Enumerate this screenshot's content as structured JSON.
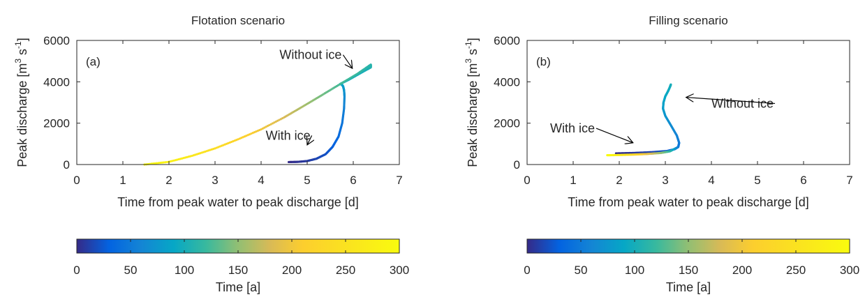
{
  "chart_data": [
    {
      "type": "scatter",
      "panel_label": "(a)",
      "title": "Flotation scenario",
      "xlabel": "Time from peak water to peak discharge [d]",
      "ylabel_main": "Peak discharge [m",
      "ylabel_sup1": "3",
      "ylabel_mid": " s",
      "ylabel_sup2": "-1",
      "ylabel_end": "]",
      "xlim": [
        0,
        7
      ],
      "ylim": [
        0,
        6000
      ],
      "xticks": [
        0,
        1,
        2,
        3,
        4,
        5,
        6,
        7
      ],
      "yticks": [
        0,
        2000,
        4000,
        6000
      ],
      "grid": false,
      "colorbar": {
        "label": "Time [a]",
        "ticks": [
          0,
          50,
          100,
          150,
          200,
          250,
          300
        ],
        "range": [
          0,
          300
        ],
        "colormap": "parula"
      },
      "annotations": [
        {
          "text": "Without ice",
          "text_at": [
            4.4,
            5100
          ],
          "arrow_to": [
            5.98,
            4650
          ]
        },
        {
          "text": "With ice",
          "text_at": [
            4.1,
            1200
          ],
          "arrow_to": [
            5.0,
            950
          ]
        }
      ],
      "series": [
        {
          "note_color": "color encodes Time [a]",
          "x": [
            4.6,
            4.8,
            5.0,
            5.2,
            5.4,
            5.55,
            5.68,
            5.76,
            5.8,
            5.81,
            5.8,
            5.78,
            5.75,
            5.72,
            5.9,
            6.1,
            6.3,
            6.38,
            6.38,
            6.1,
            5.7,
            5.3,
            4.9,
            4.5,
            4.0,
            3.5,
            3.0,
            2.5,
            2.0,
            1.47
          ],
          "y": [
            120,
            130,
            170,
            280,
            500,
            850,
            1350,
            2000,
            2700,
            3300,
            3600,
            3780,
            3870,
            3900,
            4100,
            4350,
            4600,
            4700,
            4830,
            4400,
            3870,
            3330,
            2800,
            2280,
            1700,
            1220,
            780,
            420,
            130,
            0
          ],
          "t": [
            0,
            4,
            8,
            14,
            20,
            28,
            36,
            46,
            56,
            66,
            74,
            80,
            85,
            90,
            94,
            98,
            102,
            106,
            110,
            118,
            125,
            140,
            160,
            180,
            200,
            220,
            240,
            260,
            280,
            300
          ]
        }
      ]
    },
    {
      "type": "scatter",
      "panel_label": "(b)",
      "title": "Filling scenario",
      "xlabel": "Time from peak water to peak discharge [d]",
      "ylabel_main": "Peak discharge [m",
      "ylabel_sup1": "3",
      "ylabel_mid": " s",
      "ylabel_sup2": "-1",
      "ylabel_end": "]",
      "xlim": [
        0,
        7
      ],
      "ylim": [
        0,
        6000
      ],
      "xticks": [
        0,
        1,
        2,
        3,
        4,
        5,
        6,
        7
      ],
      "yticks": [
        0,
        2000,
        4000,
        6000
      ],
      "grid": false,
      "colorbar": {
        "label": "Time [a]",
        "ticks": [
          0,
          50,
          100,
          150,
          200,
          250,
          300
        ],
        "range": [
          0,
          300
        ],
        "colormap": "parula"
      },
      "annotations": [
        {
          "text": "Without ice",
          "text_at": [
            4.0,
            2750
          ],
          "arrow_to": [
            3.45,
            3250
          ]
        },
        {
          "text": "With ice",
          "text_at": [
            0.5,
            1550
          ],
          "arrow_to": [
            2.3,
            1050
          ]
        }
      ],
      "series": [
        {
          "note_color": "color encodes Time [a]",
          "x": [
            1.93,
            2.3,
            2.7,
            3.05,
            3.2,
            3.28,
            3.3,
            3.25,
            3.12,
            3.0,
            2.95,
            2.96,
            3.0,
            3.06,
            3.1,
            3.12
          ],
          "y": [
            540,
            560,
            600,
            660,
            740,
            850,
            1050,
            1400,
            1900,
            2350,
            2700,
            3000,
            3300,
            3550,
            3750,
            3870
          ],
          "t": [
            0,
            6,
            14,
            24,
            34,
            42,
            50,
            58,
            66,
            74,
            80,
            86,
            90,
            94,
            97,
            100
          ]
        },
        {
          "note_color": "color encodes Time [a]",
          "x": [
            3.28,
            3.1,
            2.9,
            2.6,
            2.3,
            2.0,
            1.74
          ],
          "y": [
            850,
            640,
            560,
            510,
            480,
            460,
            450
          ],
          "t": [
            50,
            110,
            150,
            190,
            230,
            270,
            300
          ]
        }
      ]
    }
  ]
}
